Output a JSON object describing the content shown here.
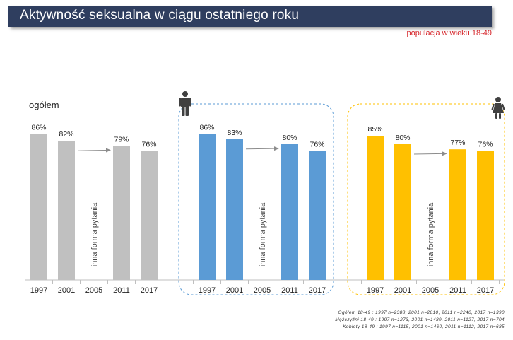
{
  "title": "Aktywność seksualna w ciągu ostatniego roku",
  "subtitle": "populacja w wieku 18-49",
  "group_label_total": "ogółem",
  "footnotes": [
    "Ogółem 18-49 : 1997 n=2388, 2001 n=2810, 2011 n=2240, 2017 n=1390",
    "Mężczyźni 18-49 : 1997 n=1273, 2001 n=1489, 2011 n=1127, 2017 n=704",
    "Kobiety 18-49 : 1997 n=1115, 2001 n=1460, 2011 n=1112, 2017 n=685"
  ],
  "icons": {
    "male": "man-icon",
    "female": "woman-icon"
  },
  "chart_data": {
    "type": "bar",
    "categories": [
      "1997",
      "2001",
      "2005",
      "2011",
      "2017"
    ],
    "ylim": [
      0,
      100
    ],
    "note_2005": "inna forma pytania",
    "series": [
      {
        "key": "total",
        "color": "#c0c0c0",
        "values": [
          86,
          82,
          null,
          79,
          76
        ],
        "labels": [
          "86%",
          "82%",
          "",
          "79%",
          "76%"
        ]
      },
      {
        "key": "men",
        "color": "#5b9bd5",
        "values": [
          86,
          83,
          null,
          80,
          76
        ],
        "labels": [
          "86%",
          "83%",
          "",
          "80%",
          "76%"
        ]
      },
      {
        "key": "women",
        "color": "#ffc000",
        "values": [
          85,
          80,
          null,
          77,
          76
        ],
        "labels": [
          "85%",
          "80%",
          "",
          "77%",
          "76%"
        ]
      }
    ]
  }
}
